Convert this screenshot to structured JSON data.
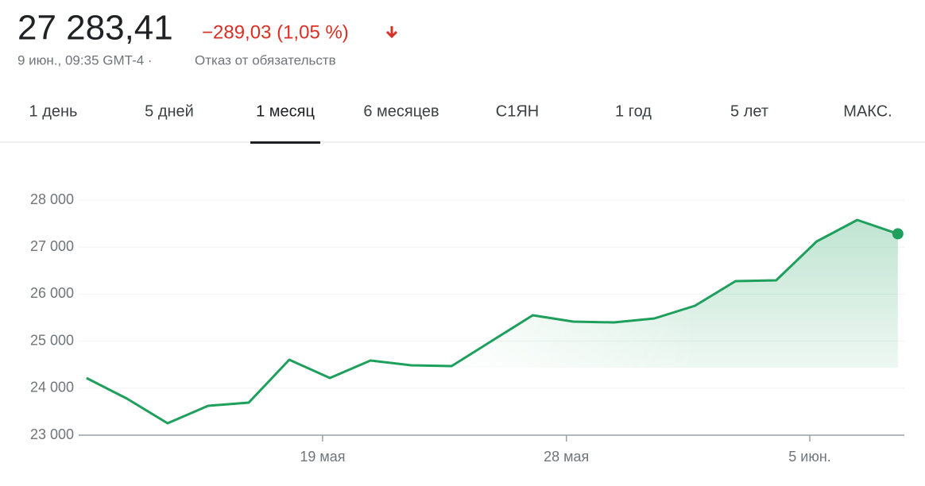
{
  "header": {
    "price": "27 283,41",
    "change": "−289,03 (1,05 %)",
    "timestamp": "9 июн., 09:35 GMT-4 ·",
    "disclaimer": "Отказ от обязательств",
    "tabs": [
      "1 день",
      "5 дней",
      "1 месяц",
      "6 месяцев",
      "С1ЯН",
      "1 год",
      "5 лет",
      "МАКС."
    ],
    "active_tab": 2
  },
  "chart_data": {
    "type": "line",
    "values": [
      24216,
      23777,
      23253,
      23625,
      23693,
      24605,
      24216,
      24588,
      24486,
      24470,
      25010,
      25551,
      25416,
      25399,
      25483,
      25753,
      26277,
      26294,
      27122,
      27578,
      27283.41
    ],
    "color": "#1e9f5c",
    "xlim": [
      -0.27,
      20.16
    ],
    "ylim": [
      23000,
      28600
    ],
    "yticks": [
      {
        "value": 23000,
        "label": "23 000"
      },
      {
        "value": 24000,
        "label": "24 000"
      },
      {
        "value": 25000,
        "label": "25 000"
      },
      {
        "value": 26000,
        "label": "26 000"
      },
      {
        "value": 27000,
        "label": "27 000"
      },
      {
        "value": 28000,
        "label": "28 000"
      }
    ],
    "xticks": [
      {
        "value": 5.82,
        "label": "19 мая"
      },
      {
        "value": 11.83,
        "label": "28 мая"
      },
      {
        "value": 17.83,
        "label": "5 июн."
      }
    ],
    "grid": true
  }
}
